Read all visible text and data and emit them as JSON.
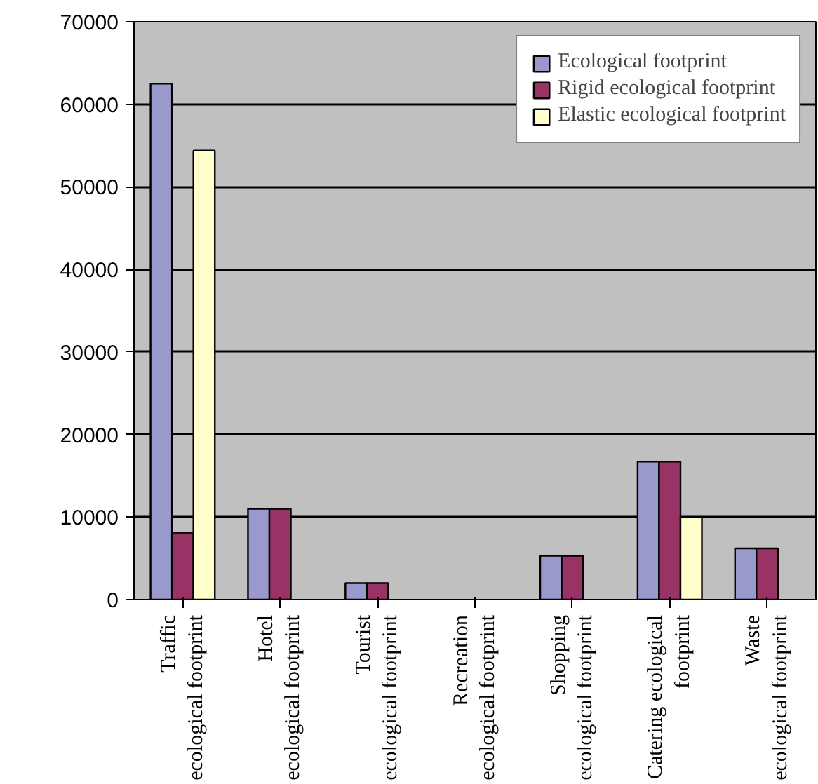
{
  "chart_data": {
    "type": "bar",
    "categories": [
      "Traffic\necological footprint",
      "Hotel\necological footprint",
      "Tourist\necological footprint",
      "Recreation\necological footprint",
      "Shopping\necological footprint",
      "Catering ecological\nfootprint",
      "Waste\necological footprint"
    ],
    "series": [
      {
        "name": "Ecological footprint",
        "color": "#9999cc",
        "values": [
          62500,
          11000,
          2000,
          null,
          5300,
          16700,
          6200
        ]
      },
      {
        "name": "Rigid ecological footprint",
        "color": "#993366",
        "values": [
          8100,
          11000,
          2000,
          null,
          5300,
          16700,
          6200
        ]
      },
      {
        "name": "Elastic ecological footprint",
        "color": "#ffffcc",
        "values": [
          54400,
          null,
          null,
          null,
          null,
          10000,
          null
        ]
      }
    ],
    "ylim": [
      0,
      70000
    ],
    "yticks": [
      0,
      10000,
      20000,
      30000,
      40000,
      50000,
      60000,
      70000
    ],
    "grid": "y",
    "legend": "top right"
  }
}
